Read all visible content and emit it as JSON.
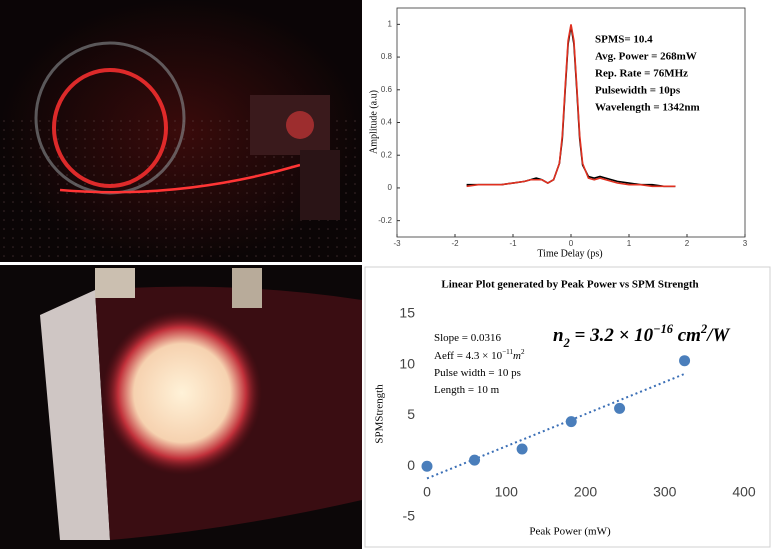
{
  "chart_data": [
    {
      "type": "line",
      "x_label": "Time Delay (ps)",
      "y_label": "Amplitude (a.u)",
      "x": [
        -1.8,
        -1.6,
        -1.4,
        -1.2,
        -1.0,
        -0.8,
        -0.7,
        -0.6,
        -0.5,
        -0.4,
        -0.3,
        -0.2,
        -0.15,
        -0.1,
        -0.05,
        0,
        0.05,
        0.1,
        0.15,
        0.2,
        0.3,
        0.4,
        0.5,
        0.6,
        0.7,
        0.8,
        1.0,
        1.2,
        1.4,
        1.6,
        1.8
      ],
      "series": [
        {
          "color": "#000000",
          "values": [
            0.02,
            0.02,
            0.02,
            0.02,
            0.03,
            0.04,
            0.05,
            0.06,
            0.05,
            0.03,
            0.05,
            0.15,
            0.3,
            0.6,
            0.88,
            0.99,
            0.88,
            0.6,
            0.3,
            0.14,
            0.07,
            0.06,
            0.07,
            0.06,
            0.05,
            0.04,
            0.03,
            0.02,
            0.02,
            0.01,
            0.01
          ]
        },
        {
          "color": "#e03020",
          "values": [
            0.01,
            0.02,
            0.02,
            0.02,
            0.03,
            0.04,
            0.05,
            0.05,
            0.05,
            0.03,
            0.05,
            0.15,
            0.32,
            0.62,
            0.9,
            1.0,
            0.9,
            0.62,
            0.32,
            0.15,
            0.06,
            0.05,
            0.06,
            0.05,
            0.04,
            0.03,
            0.02,
            0.02,
            0.01,
            0.01,
            0.01
          ]
        }
      ],
      "xlim": [
        -3,
        3
      ],
      "xticks": [
        -3,
        -2,
        -1,
        0,
        1,
        2,
        3
      ],
      "ylim": [
        -0.3,
        1.1
      ],
      "yticks": [
        -0.2,
        0,
        0.2,
        0.4,
        0.6,
        0.8,
        1
      ],
      "annotations": [
        "SPMS= 10.4",
        "Avg. Power = 268mW",
        "Rep. Rate = 76MHz",
        "Pulsewidth = 10ps",
        "Wavelength = 1342nm"
      ]
    },
    {
      "type": "scatter",
      "title": "Linear Plot generated by Peak Power vs SPM Strength",
      "x_label": "Peak Power (mW)",
      "y_label": "SPMStrength",
      "x": [
        0,
        60,
        120,
        182,
        243,
        325
      ],
      "values": [
        0,
        0.6,
        1.7,
        4.4,
        5.7,
        10.4
      ],
      "color": "#4a7ebb",
      "trendline": {
        "x": [
          0,
          325
        ],
        "values": [
          -1.2,
          9.1
        ],
        "color": "#3b6fb6"
      },
      "xlim": [
        0,
        400
      ],
      "xticks": [
        0,
        100,
        200,
        300,
        400
      ],
      "ylim": [
        -5,
        15
      ],
      "yticks": [
        -5,
        0,
        5,
        10,
        15
      ],
      "annotations": [
        {
          "parts": [
            {
              "text": "Slope = 0.0316"
            }
          ]
        },
        {
          "parts": [
            {
              "text": "Aeff = 4.3 × 10"
            },
            {
              "text": "−11",
              "sup": true
            },
            {
              "text": "m",
              "italic": true
            },
            {
              "text": "2",
              "sup": true
            }
          ]
        },
        {
          "parts": [
            {
              "text": "Pulse width = 10 ps"
            }
          ]
        },
        {
          "parts": [
            {
              "text": "Length = 10 m"
            }
          ]
        },
        {
          "parts": [
            {
              "text": "n"
            },
            {
              "text": "2",
              "sub": true
            },
            {
              "text": " = 3.2 × 10"
            },
            {
              "text": "−16",
              "sup": true
            },
            {
              "text": " cm"
            },
            {
              "text": "2",
              "sup": true
            },
            {
              "text": "/W"
            }
          ]
        }
      ]
    }
  ]
}
